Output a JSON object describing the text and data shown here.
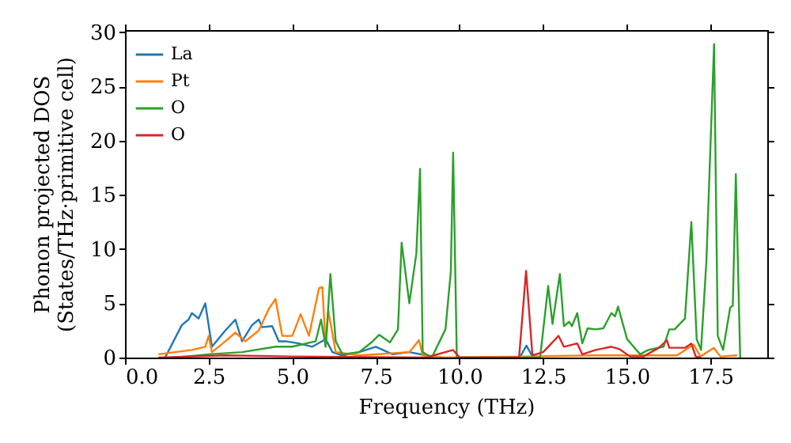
{
  "chart_data": {
    "type": "line",
    "xlabel": "Frequency (THz)",
    "ylabel": "Phonon projected DOS\n(States/THz·primitive cell)",
    "xlim": [
      0,
      19.2
    ],
    "ylim": [
      0,
      30.2
    ],
    "xticks": [
      {
        "value": 0,
        "label": "0.0"
      },
      {
        "value": 2.5,
        "label": "2.5"
      },
      {
        "value": 5,
        "label": "5.0"
      },
      {
        "value": 7.5,
        "label": "7.5"
      },
      {
        "value": 10,
        "label": "10.0"
      },
      {
        "value": 12.5,
        "label": "12.5"
      },
      {
        "value": 15,
        "label": "15.0"
      },
      {
        "value": 17.5,
        "label": "17.5"
      }
    ],
    "yticks": [
      0,
      5,
      10,
      15,
      20,
      25,
      30
    ],
    "grid": false,
    "legend": "top left",
    "series": [
      {
        "name": "La",
        "color": "#1f77b4",
        "x": [
          1.2,
          1.7,
          1.9,
          2.0,
          2.2,
          2.4,
          2.6,
          3.0,
          3.3,
          3.5,
          3.8,
          4.0,
          4.1,
          4.4,
          4.6,
          4.8,
          5.2,
          5.6,
          6.0,
          6.2,
          6.5,
          7.0,
          7.5,
          8.0,
          8.5,
          9.0,
          9.5,
          11.8,
          12.0,
          12.2
        ],
        "values": [
          0,
          3.0,
          3.5,
          4.1,
          3.6,
          5.0,
          1.0,
          2.5,
          3.5,
          1.5,
          3.0,
          3.5,
          2.8,
          2.9,
          1.5,
          1.5,
          1.3,
          1.0,
          1.7,
          0.5,
          0.2,
          0.5,
          1.0,
          0.3,
          0.5,
          0.2,
          0,
          0,
          1.1,
          0
        ]
      },
      {
        "name": "Pt",
        "color": "#ff7f0e",
        "x": [
          1.0,
          2.0,
          2.4,
          2.5,
          2.6,
          3.0,
          3.3,
          3.6,
          4.0,
          4.3,
          4.5,
          4.7,
          5.0,
          5.25,
          5.5,
          5.8,
          5.9,
          6.0,
          6.08,
          6.3,
          7.0,
          8.5,
          8.79,
          8.9,
          9.5,
          12,
          14,
          16.5,
          17.0,
          17.2,
          17.6,
          17.8,
          18.3
        ],
        "values": [
          0.3,
          0.7,
          1.0,
          2.0,
          0.5,
          1.5,
          2.3,
          1.5,
          2.5,
          4.5,
          5.4,
          2.0,
          2.0,
          4.0,
          2.0,
          6.4,
          6.5,
          1.0,
          4.3,
          0.5,
          0.2,
          0.5,
          1.6,
          0.2,
          0,
          0.1,
          0.2,
          0.2,
          1.2,
          0.1,
          0.9,
          0.1,
          0.2
        ]
      },
      {
        "name": "O",
        "color": "#2ca02c",
        "x": [
          1.5,
          2.5,
          3.5,
          4.5,
          5.0,
          5.7,
          5.86,
          6.0,
          6.14,
          6.3,
          6.5,
          7.0,
          7.37,
          7.6,
          7.92,
          8.16,
          8.27,
          8.5,
          8.71,
          8.82,
          8.9,
          9.17,
          9.58,
          9.74,
          9.81,
          9.92,
          12.2,
          12.41,
          12.65,
          12.78,
          13.0,
          13.12,
          13.28,
          13.36,
          13.52,
          13.67,
          13.83,
          14.07,
          14.3,
          14.54,
          14.65,
          14.74,
          15.01,
          15.4,
          15.64,
          16.1,
          16.27,
          16.43,
          16.74,
          16.93,
          17.09,
          17.22,
          17.38,
          17.61,
          17.72,
          17.88,
          18.09,
          18.17,
          18.26,
          18.39
        ],
        "values": [
          0,
          0.3,
          0.5,
          1.0,
          1.0,
          1.5,
          3.5,
          1.0,
          7.7,
          1.5,
          0.3,
          0.5,
          1.4,
          2.1,
          1.4,
          2.6,
          10.6,
          5.0,
          9.6,
          17.4,
          0.5,
          0,
          2.6,
          7.9,
          18.9,
          0,
          0,
          0,
          6.6,
          3.1,
          7.7,
          2.9,
          3.3,
          2.9,
          4.1,
          1.3,
          2.7,
          2.6,
          2.7,
          4.1,
          3.8,
          4.7,
          1.7,
          0.3,
          0.7,
          1.0,
          2.6,
          2.6,
          3.6,
          12.5,
          1.7,
          0.7,
          8.9,
          28.9,
          2.0,
          0.7,
          4.6,
          4.8,
          16.9,
          0
        ]
      },
      {
        "name": "O",
        "color": "#d62728",
        "x": [
          1.0,
          3.0,
          5.0,
          9.0,
          9.81,
          10.0,
          11.78,
          11.99,
          12.18,
          12.5,
          12.96,
          13.12,
          13.52,
          13.67,
          14.07,
          14.54,
          14.77,
          15.1,
          15.5,
          15.96,
          16.2,
          16.27,
          16.74,
          16.93,
          17.06,
          17.22
        ],
        "values": [
          0,
          0.2,
          0.1,
          0,
          0.7,
          0,
          0,
          8.0,
          0.2,
          0.5,
          2.0,
          1.0,
          1.3,
          0.3,
          0.7,
          1.0,
          0.8,
          0.1,
          0.1,
          0.9,
          1.6,
          0.9,
          0.9,
          1.3,
          0.1,
          0
        ]
      }
    ]
  }
}
